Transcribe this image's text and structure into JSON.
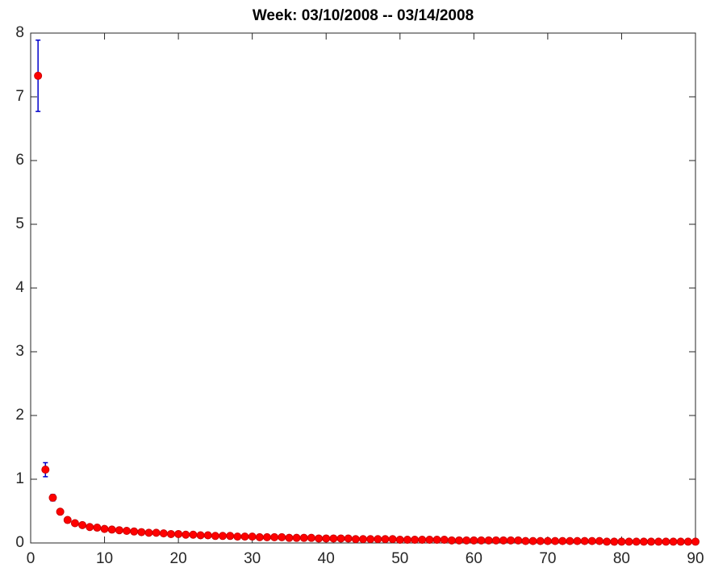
{
  "chart_data": {
    "type": "scatter",
    "title": "Week: 03/10/2008 -- 03/14/2008",
    "x": [
      1,
      2,
      3,
      4,
      5,
      6,
      7,
      8,
      9,
      10,
      11,
      12,
      13,
      14,
      15,
      16,
      17,
      18,
      19,
      20,
      21,
      22,
      23,
      24,
      25,
      26,
      27,
      28,
      29,
      30,
      31,
      32,
      33,
      34,
      35,
      36,
      37,
      38,
      39,
      40,
      41,
      42,
      43,
      44,
      45,
      46,
      47,
      48,
      49,
      50,
      51,
      52,
      53,
      54,
      55,
      56,
      57,
      58,
      59,
      60,
      61,
      62,
      63,
      64,
      65,
      66,
      67,
      68,
      69,
      70,
      71,
      72,
      73,
      74,
      75,
      76,
      77,
      78,
      79,
      80,
      81,
      82,
      83,
      84,
      85,
      86,
      87,
      88,
      89,
      90
    ],
    "values": [
      7.33,
      1.15,
      0.71,
      0.49,
      0.36,
      0.31,
      0.28,
      0.25,
      0.24,
      0.22,
      0.21,
      0.2,
      0.19,
      0.18,
      0.17,
      0.16,
      0.16,
      0.15,
      0.14,
      0.14,
      0.13,
      0.13,
      0.12,
      0.12,
      0.11,
      0.11,
      0.11,
      0.1,
      0.1,
      0.1,
      0.09,
      0.09,
      0.09,
      0.09,
      0.08,
      0.08,
      0.08,
      0.08,
      0.07,
      0.07,
      0.07,
      0.07,
      0.07,
      0.06,
      0.06,
      0.06,
      0.06,
      0.06,
      0.06,
      0.05,
      0.05,
      0.05,
      0.05,
      0.05,
      0.05,
      0.05,
      0.04,
      0.04,
      0.04,
      0.04,
      0.04,
      0.04,
      0.04,
      0.04,
      0.04,
      0.04,
      0.03,
      0.03,
      0.03,
      0.03,
      0.03,
      0.03,
      0.03,
      0.03,
      0.03,
      0.03,
      0.03,
      0.02,
      0.02,
      0.02,
      0.02,
      0.02,
      0.02,
      0.02,
      0.02,
      0.02,
      0.02,
      0.02,
      0.02,
      0.02
    ],
    "errors": [
      0.56,
      0.11,
      0.05,
      0.02,
      0.02,
      0.01,
      0.01,
      0.01,
      0.01,
      0.01,
      0.01,
      0.01,
      0.01,
      0.01,
      0.01,
      0.01,
      0.01,
      0.01,
      0.01,
      0.01,
      0.01,
      0.01,
      0.01,
      0.01,
      0.01,
      0.01,
      0.01,
      0.01,
      0.01,
      0.01,
      0.01,
      0.01,
      0.01,
      0.01,
      0.01,
      0.01,
      0.01,
      0.01,
      0.01,
      0.01,
      0.01,
      0.01,
      0.01,
      0.01,
      0.01,
      0.01,
      0.01,
      0.01,
      0.01,
      0.01,
      0.01,
      0.01,
      0.01,
      0.01,
      0.01,
      0.01,
      0.01,
      0.01,
      0.01,
      0.01,
      0.01,
      0.01,
      0.01,
      0.01,
      0.01,
      0.01,
      0.01,
      0.01,
      0.01,
      0.01,
      0.01,
      0.01,
      0.01,
      0.01,
      0.01,
      0.01,
      0.01,
      0.01,
      0.01,
      0.01,
      0.01,
      0.01,
      0.01,
      0.01,
      0.01,
      0.01,
      0.01,
      0.01,
      0.01,
      0.01
    ],
    "color": "#ff0000",
    "error_color": "#0000cc",
    "xlim": [
      0,
      90
    ],
    "ylim": [
      0,
      8
    ],
    "xticks": [
      0,
      10,
      20,
      30,
      40,
      50,
      60,
      70,
      80,
      90
    ],
    "yticks": [
      0,
      1,
      2,
      3,
      4,
      5,
      6,
      7,
      8
    ]
  }
}
